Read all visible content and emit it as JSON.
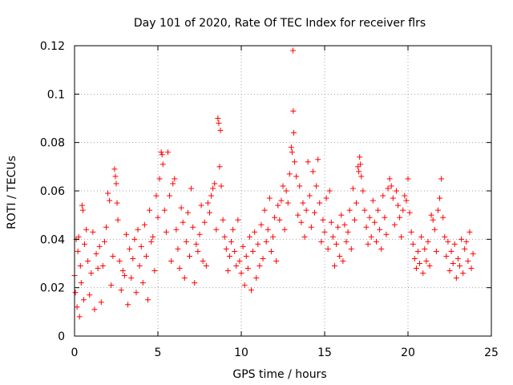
{
  "chart_data": {
    "type": "scatter",
    "title": "Day 101 of 2020, Rate Of TEC Index for receiver flrs",
    "xlabel": "GPS time / hours",
    "ylabel": "ROTI / TECUs",
    "xlim": [
      0,
      25
    ],
    "ylim": [
      0,
      0.12
    ],
    "xticks": [
      0,
      5,
      10,
      15,
      20,
      25
    ],
    "xtick_labels": [
      "0",
      "5",
      "10",
      "15",
      "20",
      "25"
    ],
    "yticks": [
      0,
      0.02,
      0.04,
      0.06,
      0.08,
      0.1,
      0.12
    ],
    "ytick_labels": [
      "0",
      "0.02",
      "0.04",
      "0.06",
      "0.08",
      "0.1",
      "0.12"
    ],
    "grid": true,
    "marker": "+",
    "color": "#ff0000",
    "series": [
      {
        "points": [
          [
            0.0,
            0.025
          ],
          [
            0.05,
            0.018
          ],
          [
            0.1,
            0.04
          ],
          [
            0.15,
            0.012
          ],
          [
            0.2,
            0.035
          ],
          [
            0.25,
            0.041
          ],
          [
            0.3,
            0.008
          ],
          [
            0.35,
            0.029
          ],
          [
            0.4,
            0.022
          ],
          [
            0.45,
            0.054
          ],
          [
            0.5,
            0.052
          ],
          [
            0.55,
            0.015
          ],
          [
            0.6,
            0.038
          ],
          [
            0.7,
            0.044
          ],
          [
            0.8,
            0.031
          ],
          [
            0.9,
            0.017
          ],
          [
            1.0,
            0.026
          ],
          [
            1.1,
            0.043
          ],
          [
            1.2,
            0.011
          ],
          [
            1.3,
            0.034
          ],
          [
            1.4,
            0.028
          ],
          [
            1.5,
            0.037
          ],
          [
            1.6,
            0.014
          ],
          [
            1.7,
            0.029
          ],
          [
            1.8,
            0.039
          ],
          [
            1.9,
            0.045
          ],
          [
            2.0,
            0.059
          ],
          [
            2.1,
            0.056
          ],
          [
            2.2,
            0.021
          ],
          [
            2.3,
            0.033
          ],
          [
            2.4,
            0.069
          ],
          [
            2.45,
            0.066
          ],
          [
            2.5,
            0.063
          ],
          [
            2.55,
            0.055
          ],
          [
            2.6,
            0.048
          ],
          [
            2.7,
            0.031
          ],
          [
            2.8,
            0.019
          ],
          [
            2.9,
            0.027
          ],
          [
            3.0,
            0.025
          ],
          [
            3.1,
            0.042
          ],
          [
            3.2,
            0.013
          ],
          [
            3.3,
            0.036
          ],
          [
            3.4,
            0.024
          ],
          [
            3.5,
            0.032
          ],
          [
            3.6,
            0.04
          ],
          [
            3.7,
            0.018
          ],
          [
            3.8,
            0.044
          ],
          [
            3.9,
            0.029
          ],
          [
            4.0,
            0.037
          ],
          [
            4.1,
            0.022
          ],
          [
            4.2,
            0.046
          ],
          [
            4.3,
            0.033
          ],
          [
            4.4,
            0.015
          ],
          [
            4.5,
            0.052
          ],
          [
            4.6,
            0.039
          ],
          [
            4.7,
            0.041
          ],
          [
            4.8,
            0.027
          ],
          [
            4.9,
            0.058
          ],
          [
            5.0,
            0.049
          ],
          [
            5.1,
            0.065
          ],
          [
            5.2,
            0.076
          ],
          [
            5.25,
            0.075
          ],
          [
            5.3,
            0.071
          ],
          [
            5.4,
            0.052
          ],
          [
            5.5,
            0.043
          ],
          [
            5.6,
            0.076
          ],
          [
            5.7,
            0.058
          ],
          [
            5.8,
            0.031
          ],
          [
            5.9,
            0.063
          ],
          [
            6.0,
            0.065
          ],
          [
            6.1,
            0.044
          ],
          [
            6.2,
            0.036
          ],
          [
            6.3,
            0.028
          ],
          [
            6.4,
            0.053
          ],
          [
            6.5,
            0.047
          ],
          [
            6.6,
            0.024
          ],
          [
            6.7,
            0.039
          ],
          [
            6.8,
            0.051
          ],
          [
            6.9,
            0.033
          ],
          [
            7.0,
            0.061
          ],
          [
            7.1,
            0.045
          ],
          [
            7.2,
            0.022
          ],
          [
            7.3,
            0.038
          ],
          [
            7.4,
            0.035
          ],
          [
            7.5,
            0.042
          ],
          [
            7.6,
            0.054
          ],
          [
            7.7,
            0.031
          ],
          [
            7.8,
            0.047
          ],
          [
            7.9,
            0.029
          ],
          [
            8.0,
            0.055
          ],
          [
            8.1,
            0.051
          ],
          [
            8.2,
            0.058
          ],
          [
            8.3,
            0.061
          ],
          [
            8.4,
            0.063
          ],
          [
            8.5,
            0.044
          ],
          [
            8.6,
            0.09
          ],
          [
            8.65,
            0.088
          ],
          [
            8.7,
            0.07
          ],
          [
            8.75,
            0.085
          ],
          [
            8.8,
            0.062
          ],
          [
            8.9,
            0.048
          ],
          [
            9.0,
            0.041
          ],
          [
            9.1,
            0.036
          ],
          [
            9.2,
            0.027
          ],
          [
            9.3,
            0.033
          ],
          [
            9.4,
            0.039
          ],
          [
            9.5,
            0.044
          ],
          [
            9.6,
            0.035
          ],
          [
            9.7,
            0.029
          ],
          [
            9.8,
            0.048
          ],
          [
            9.9,
            0.031
          ],
          [
            10.0,
            0.026
          ],
          [
            10.1,
            0.037
          ],
          [
            10.2,
            0.021
          ],
          [
            10.3,
            0.033
          ],
          [
            10.4,
            0.028
          ],
          [
            10.5,
            0.041
          ],
          [
            10.6,
            0.019
          ],
          [
            10.7,
            0.035
          ],
          [
            10.8,
            0.043
          ],
          [
            10.9,
            0.024
          ],
          [
            11.0,
            0.038
          ],
          [
            11.1,
            0.029
          ],
          [
            11.2,
            0.046
          ],
          [
            11.3,
            0.032
          ],
          [
            11.4,
            0.052
          ],
          [
            11.5,
            0.039
          ],
          [
            11.6,
            0.044
          ],
          [
            11.7,
            0.057
          ],
          [
            11.8,
            0.035
          ],
          [
            11.9,
            0.041
          ],
          [
            12.0,
            0.049
          ],
          [
            12.1,
            0.031
          ],
          [
            12.2,
            0.054
          ],
          [
            12.3,
            0.048
          ],
          [
            12.4,
            0.056
          ],
          [
            12.5,
            0.062
          ],
          [
            12.6,
            0.044
          ],
          [
            12.7,
            0.06
          ],
          [
            12.8,
            0.055
          ],
          [
            12.9,
            0.067
          ],
          [
            13.0,
            0.078
          ],
          [
            13.05,
            0.076
          ],
          [
            13.1,
            0.118
          ],
          [
            13.12,
            0.093
          ],
          [
            13.15,
            0.084
          ],
          [
            13.2,
            0.072
          ],
          [
            13.3,
            0.066
          ],
          [
            13.4,
            0.05
          ],
          [
            13.5,
            0.062
          ],
          [
            13.6,
            0.047
          ],
          [
            13.7,
            0.055
          ],
          [
            13.8,
            0.041
          ],
          [
            13.9,
            0.052
          ],
          [
            14.0,
            0.072
          ],
          [
            14.1,
            0.058
          ],
          [
            14.2,
            0.045
          ],
          [
            14.3,
            0.068
          ],
          [
            14.4,
            0.051
          ],
          [
            14.5,
            0.062
          ],
          [
            14.6,
            0.073
          ],
          [
            14.7,
            0.055
          ],
          [
            14.8,
            0.039
          ],
          [
            14.9,
            0.048
          ],
          [
            15.0,
            0.043
          ],
          [
            15.1,
            0.057
          ],
          [
            15.2,
            0.036
          ],
          [
            15.3,
            0.06
          ],
          [
            15.4,
            0.047
          ],
          [
            15.5,
            0.041
          ],
          [
            15.6,
            0.029
          ],
          [
            15.7,
            0.038
          ],
          [
            15.8,
            0.045
          ],
          [
            15.9,
            0.033
          ],
          [
            16.0,
            0.05
          ],
          [
            16.1,
            0.031
          ],
          [
            16.2,
            0.046
          ],
          [
            16.3,
            0.039
          ],
          [
            16.4,
            0.043
          ],
          [
            16.5,
            0.052
          ],
          [
            16.6,
            0.036
          ],
          [
            16.7,
            0.061
          ],
          [
            16.8,
            0.048
          ],
          [
            16.9,
            0.055
          ],
          [
            17.0,
            0.07
          ],
          [
            17.05,
            0.068
          ],
          [
            17.1,
            0.074
          ],
          [
            17.15,
            0.071
          ],
          [
            17.2,
            0.066
          ],
          [
            17.3,
            0.06
          ],
          [
            17.4,
            0.052
          ],
          [
            17.5,
            0.045
          ],
          [
            17.6,
            0.038
          ],
          [
            17.7,
            0.049
          ],
          [
            17.8,
            0.041
          ],
          [
            17.9,
            0.056
          ],
          [
            18.0,
            0.047
          ],
          [
            18.1,
            0.039
          ],
          [
            18.2,
            0.052
          ],
          [
            18.3,
            0.044
          ],
          [
            18.4,
            0.036
          ],
          [
            18.5,
            0.058
          ],
          [
            18.6,
            0.049
          ],
          [
            18.7,
            0.042
          ],
          [
            18.8,
            0.061
          ],
          [
            18.9,
            0.065
          ],
          [
            19.0,
            0.062
          ],
          [
            19.1,
            0.057
          ],
          [
            19.2,
            0.046
          ],
          [
            19.3,
            0.06
          ],
          [
            19.4,
            0.054
          ],
          [
            19.5,
            0.049
          ],
          [
            19.6,
            0.041
          ],
          [
            19.7,
            0.052
          ],
          [
            19.8,
            0.058
          ],
          [
            19.9,
            0.056
          ],
          [
            20.0,
            0.065
          ],
          [
            20.1,
            0.051
          ],
          [
            20.2,
            0.043
          ],
          [
            20.3,
            0.038
          ],
          [
            20.4,
            0.032
          ],
          [
            20.5,
            0.028
          ],
          [
            20.6,
            0.035
          ],
          [
            20.7,
            0.03
          ],
          [
            20.8,
            0.041
          ],
          [
            20.9,
            0.026
          ],
          [
            21.0,
            0.036
          ],
          [
            21.1,
            0.031
          ],
          [
            21.2,
            0.039
          ],
          [
            21.3,
            0.029
          ],
          [
            21.4,
            0.05
          ],
          [
            21.5,
            0.048
          ],
          [
            21.6,
            0.044
          ],
          [
            21.7,
            0.035
          ],
          [
            21.8,
            0.052
          ],
          [
            21.9,
            0.057
          ],
          [
            22.0,
            0.065
          ],
          [
            22.1,
            0.049
          ],
          [
            22.2,
            0.041
          ],
          [
            22.3,
            0.033
          ],
          [
            22.4,
            0.039
          ],
          [
            22.5,
            0.027
          ],
          [
            22.6,
            0.035
          ],
          [
            22.7,
            0.03
          ],
          [
            22.8,
            0.038
          ],
          [
            22.9,
            0.024
          ],
          [
            23.0,
            0.032
          ],
          [
            23.1,
            0.029
          ],
          [
            23.2,
            0.04
          ],
          [
            23.3,
            0.026
          ],
          [
            23.4,
            0.036
          ],
          [
            23.5,
            0.039
          ],
          [
            23.6,
            0.031
          ],
          [
            23.7,
            0.043
          ],
          [
            23.8,
            0.028
          ],
          [
            23.9,
            0.034
          ]
        ]
      }
    ]
  }
}
